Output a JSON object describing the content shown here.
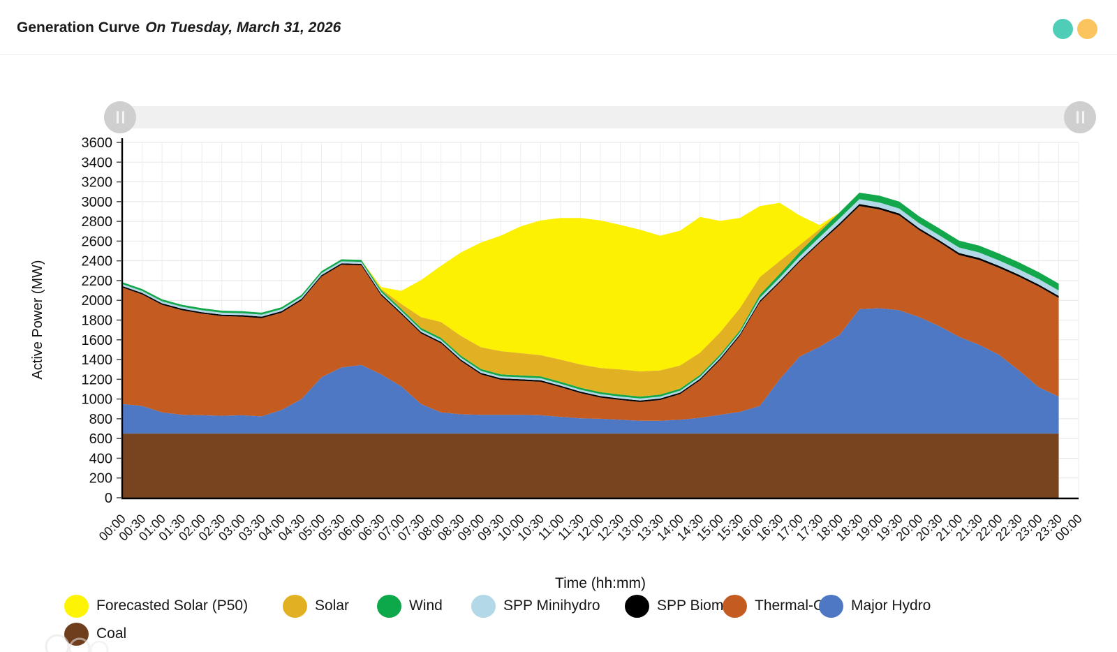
{
  "header": {
    "title": "Generation Curve",
    "subtitle": "On Tuesday, March 31, 2026",
    "dots": [
      {
        "name": "teal-status-dot",
        "color": "#4fcdb7"
      },
      {
        "name": "amber-status-dot",
        "color": "#fbc45f"
      }
    ]
  },
  "chart_data": {
    "type": "area",
    "stacked": true,
    "title": "Generation Curve On Tuesday, March 31, 2026",
    "xlabel": "Time (hh:mm)",
    "ylabel": "Active Power (MW)",
    "ylim": [
      0,
      3600
    ],
    "ytick_step": 200,
    "grid": true,
    "legend_position": "bottom",
    "x_axis_labels": [
      "00:00",
      "00:30",
      "01:00",
      "01:30",
      "02:00",
      "02:30",
      "03:00",
      "03:30",
      "04:00",
      "04:30",
      "05:00",
      "05:30",
      "06:00",
      "06:30",
      "07:00",
      "07:30",
      "08:00",
      "08:30",
      "09:00",
      "09:30",
      "10:00",
      "10:30",
      "11:00",
      "11:30",
      "12:00",
      "12:30",
      "13:00",
      "13:30",
      "14:00",
      "14:30",
      "15:00",
      "15:30",
      "16:00",
      "16:30",
      "17:00",
      "17:30",
      "18:00",
      "18:30",
      "19:00",
      "19:30",
      "20:00",
      "20:30",
      "21:00",
      "21:30",
      "22:00",
      "22:30",
      "23:00",
      "23:30",
      "00:00"
    ],
    "x": [
      "00:00",
      "00:30",
      "01:00",
      "01:30",
      "02:00",
      "02:30",
      "03:00",
      "03:30",
      "04:00",
      "04:30",
      "05:00",
      "05:30",
      "06:00",
      "06:30",
      "07:00",
      "07:30",
      "08:00",
      "08:30",
      "09:00",
      "09:30",
      "10:00",
      "10:30",
      "11:00",
      "11:30",
      "12:00",
      "12:30",
      "13:00",
      "13:30",
      "14:00",
      "14:30",
      "15:00",
      "15:30",
      "16:00",
      "16:30",
      "17:00",
      "17:30",
      "18:00",
      "18:30",
      "19:00",
      "19:30",
      "20:00",
      "20:30",
      "21:00",
      "21:30",
      "22:00",
      "22:30",
      "23:00",
      "23:30"
    ],
    "series": [
      {
        "key": "coal",
        "name": "Coal",
        "color": "#78441f",
        "values": [
          650,
          650,
          650,
          650,
          650,
          650,
          650,
          650,
          650,
          650,
          650,
          650,
          650,
          650,
          650,
          650,
          650,
          650,
          650,
          650,
          650,
          650,
          650,
          650,
          650,
          650,
          650,
          650,
          650,
          650,
          650,
          650,
          650,
          650,
          650,
          650,
          650,
          650,
          650,
          650,
          650,
          650,
          650,
          650,
          650,
          650,
          650,
          650
        ]
      },
      {
        "key": "major_hydro",
        "name": "Major Hydro",
        "color": "#4e78c4",
        "values": [
          300,
          280,
          215,
          190,
          185,
          180,
          185,
          175,
          240,
          350,
          570,
          670,
          695,
          600,
          480,
          300,
          215,
          195,
          190,
          190,
          190,
          185,
          170,
          155,
          150,
          140,
          130,
          130,
          140,
          160,
          190,
          220,
          280,
          550,
          780,
          880,
          1000,
          1260,
          1270,
          1250,
          1180,
          1090,
          980,
          900,
          800,
          640,
          470,
          375
        ]
      },
      {
        "key": "thermal_oil",
        "name": "Thermal-Oil",
        "color": "#c45c22",
        "values": [
          1180,
          1130,
          1090,
          1060,
          1030,
          1010,
          1000,
          995,
          985,
          1000,
          1020,
          1040,
          1010,
          800,
          730,
          715,
          700,
          540,
          410,
          355,
          345,
          340,
          300,
          255,
          215,
          200,
          190,
          210,
          260,
          380,
          555,
          770,
          1050,
          980,
          960,
          1050,
          1110,
          1046,
          1001,
          960,
          880,
          850,
          830,
          860,
          880,
          950,
          1020,
          1000
        ]
      },
      {
        "key": "spp_biomass",
        "name": "SPP Biomass",
        "color": "#000000",
        "values": [
          15,
          15,
          15,
          15,
          15,
          15,
          15,
          15,
          15,
          15,
          15,
          15,
          15,
          15,
          15,
          15,
          15,
          15,
          15,
          15,
          15,
          15,
          15,
          15,
          15,
          15,
          15,
          15,
          15,
          15,
          15,
          15,
          15,
          15,
          15,
          15,
          20,
          20,
          20,
          20,
          20,
          20,
          20,
          20,
          20,
          20,
          20,
          20
        ]
      },
      {
        "key": "spp_minihydro",
        "name": "SPP Minihydro",
        "color": "#b3d8e8",
        "values": [
          20,
          20,
          20,
          20,
          20,
          20,
          20,
          20,
          20,
          20,
          20,
          20,
          20,
          20,
          20,
          20,
          20,
          20,
          20,
          20,
          20,
          20,
          20,
          20,
          20,
          20,
          20,
          20,
          20,
          20,
          20,
          20,
          30,
          35,
          40,
          45,
          50,
          50,
          50,
          50,
          50,
          50,
          55,
          55,
          55,
          55,
          55,
          55
        ]
      },
      {
        "key": "wind",
        "name": "Wind",
        "color": "#12a74a",
        "values": [
          20,
          20,
          20,
          20,
          20,
          20,
          20,
          20,
          20,
          20,
          20,
          20,
          20,
          20,
          20,
          20,
          20,
          20,
          20,
          20,
          20,
          20,
          20,
          20,
          20,
          20,
          20,
          20,
          20,
          20,
          20,
          20,
          30,
          38,
          45,
          52,
          60,
          65,
          70,
          70,
          70,
          70,
          70,
          70,
          70,
          70,
          70,
          70
        ]
      },
      {
        "key": "solar",
        "name": "Solar",
        "color": "#e2b123",
        "values": [
          0,
          0,
          0,
          0,
          0,
          0,
          0,
          0,
          0,
          0,
          0,
          0,
          0,
          10,
          50,
          110,
          160,
          200,
          220,
          235,
          225,
          215,
          225,
          235,
          245,
          255,
          255,
          245,
          235,
          225,
          225,
          225,
          180,
          130,
          70,
          30,
          0,
          0,
          0,
          0,
          0,
          0,
          0,
          0,
          0,
          0,
          0,
          0
        ]
      },
      {
        "key": "forecast_solar",
        "name": "Forecasted Solar (P50)",
        "color": "#fbf100",
        "values": [
          0,
          0,
          0,
          0,
          0,
          0,
          0,
          0,
          0,
          0,
          0,
          0,
          0,
          20,
          130,
          375,
          570,
          845,
          1060,
          1170,
          1285,
          1365,
          1435,
          1485,
          1495,
          1465,
          1435,
          1365,
          1365,
          1375,
          1130,
          915,
          720,
          590,
          300,
          40,
          0,
          0,
          0,
          0,
          0,
          0,
          0,
          0,
          0,
          0,
          0,
          0
        ]
      }
    ],
    "legend": [
      {
        "label": "Forecasted Solar (P50)",
        "series_key": "forecast_solar",
        "color": "#fdf403"
      },
      {
        "label": "Solar",
        "series_key": "solar",
        "color": "#e2b123"
      },
      {
        "label": "Wind",
        "series_key": "wind",
        "color": "#0da84a"
      },
      {
        "label": "SPP Minihydro",
        "series_key": "spp_minihydro",
        "color": "#b3d8e8"
      },
      {
        "label": "SPP Biomass",
        "series_key": "spp_biomass",
        "color": "#000000"
      },
      {
        "label": "Thermal-Oil",
        "series_key": "thermal_oil",
        "color": "#c45c22"
      },
      {
        "label": "Major Hydro",
        "series_key": "major_hydro",
        "color": "#4e78c4"
      },
      {
        "label": "Coal",
        "series_key": "coal",
        "color": "#6f3e1d"
      }
    ]
  }
}
